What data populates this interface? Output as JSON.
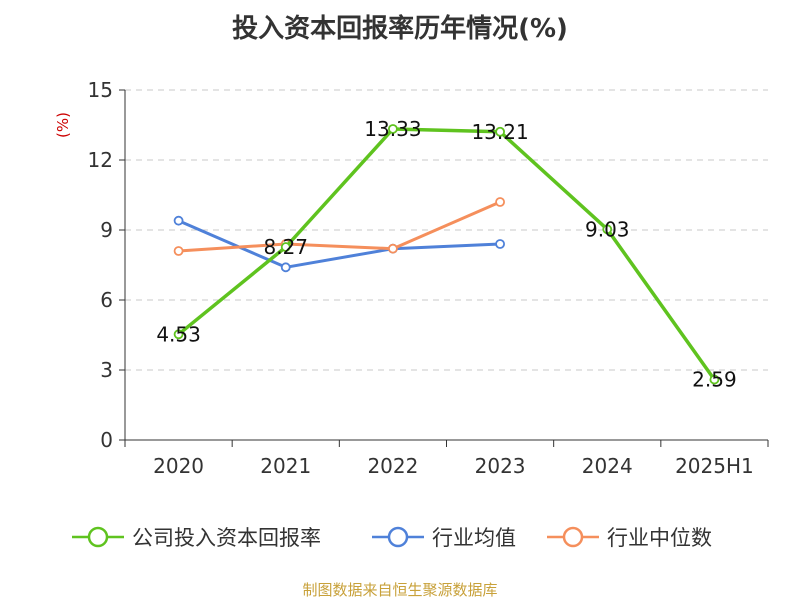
{
  "chart_data": {
    "type": "line",
    "title": "投入资本回报率历年情况(%)",
    "ylabel": "(%)",
    "xlabel": "",
    "categories": [
      "2020",
      "2021",
      "2022",
      "2023",
      "2024",
      "2025H1"
    ],
    "ylim": [
      0,
      15
    ],
    "yticks": [
      0,
      3,
      6,
      9,
      12,
      15
    ],
    "grid": true,
    "legend_position": "bottom",
    "series": [
      {
        "name": "公司投入资本回报率",
        "color": "#5fc31f",
        "values": [
          4.53,
          8.27,
          13.33,
          13.21,
          9.03,
          2.59
        ],
        "labels": [
          "4.53",
          "8.27",
          "13.33",
          "13.21",
          "9.03",
          "2.59"
        ]
      },
      {
        "name": "行业均值",
        "color": "#4f81d9",
        "values": [
          9.4,
          7.4,
          8.2,
          8.4,
          null,
          null
        ]
      },
      {
        "name": "行业中位数",
        "color": "#f58f5c",
        "values": [
          8.1,
          8.4,
          8.2,
          10.2,
          null,
          null
        ]
      }
    ],
    "unit_color": "#cc0000"
  },
  "footer": {
    "source": "制图数据来自恒生聚源数据库"
  }
}
